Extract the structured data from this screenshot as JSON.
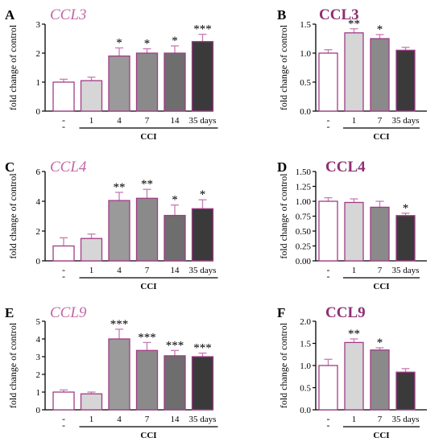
{
  "colors": {
    "title_magenta": "#c266a8",
    "title_dark_magenta": "#8e2f73",
    "bar_outline": "#a03c85",
    "error_bar": "#c77cb1",
    "bar_fills": [
      "#ffffff",
      "#d6d6d6",
      "#9a9a9a",
      "#8a8a8a",
      "#6e6e6e",
      "#3a3a3a"
    ],
    "bar_fills_4": [
      "#ffffff",
      "#d6d6d6",
      "#8a8a8a",
      "#3a3a3a"
    ]
  },
  "chart_data": [
    {
      "panel": "A",
      "title": "CCL3",
      "title_style": "italic",
      "type": "bar",
      "ylabel": "fold change of control",
      "xlabel": "CCI",
      "ylim": [
        0,
        3
      ],
      "yticks": [
        0,
        1,
        2,
        3
      ],
      "ytick_labels": [
        "0",
        "1",
        "2",
        "3"
      ],
      "categories": [
        "-",
        "1",
        "4",
        "7",
        "14",
        "35 days"
      ],
      "values": [
        1.0,
        1.05,
        1.9,
        2.0,
        2.0,
        2.4
      ],
      "errors": [
        0.1,
        0.12,
        0.28,
        0.15,
        0.25,
        0.25
      ],
      "significance": [
        "",
        "",
        "*",
        "*",
        "*",
        "***"
      ]
    },
    {
      "panel": "B",
      "title": "CCL3",
      "title_style": "bold",
      "type": "bar",
      "ylabel": "fold change of control",
      "xlabel": "CCI",
      "ylim": [
        0,
        1.5
      ],
      "yticks": [
        0,
        0.5,
        1.0,
        1.5
      ],
      "ytick_labels": [
        "0.0",
        "0.5",
        "1.0",
        "1.5"
      ],
      "categories": [
        "-",
        "1",
        "7",
        "35 days"
      ],
      "values": [
        1.0,
        1.35,
        1.25,
        1.05
      ],
      "errors": [
        0.06,
        0.07,
        0.07,
        0.05
      ],
      "significance": [
        "",
        "**",
        "*",
        ""
      ]
    },
    {
      "panel": "C",
      "title": "CCL4",
      "title_style": "italic",
      "type": "bar",
      "ylabel": "fold change of control",
      "xlabel": "CCI",
      "ylim": [
        0,
        6
      ],
      "yticks": [
        0,
        2,
        4,
        6
      ],
      "ytick_labels": [
        "0",
        "2",
        "4",
        "6"
      ],
      "categories": [
        "-",
        "1",
        "4",
        "7",
        "14",
        "35 days"
      ],
      "values": [
        1.0,
        1.5,
        4.05,
        4.2,
        3.05,
        3.5
      ],
      "errors": [
        0.55,
        0.3,
        0.55,
        0.6,
        0.7,
        0.6
      ],
      "significance": [
        "",
        "",
        "**",
        "**",
        "*",
        "*"
      ]
    },
    {
      "panel": "D",
      "title": "CCL4",
      "title_style": "bold",
      "type": "bar",
      "ylabel": "fold change of control",
      "xlabel": "CCI",
      "ylim": [
        0,
        1.5
      ],
      "yticks": [
        0,
        0.25,
        0.5,
        0.75,
        1.0,
        1.25,
        1.5
      ],
      "ytick_labels": [
        "0.00",
        "0.25",
        "0.50",
        "0.75",
        "1.00",
        "1.25",
        "1.50"
      ],
      "categories": [
        "-",
        "1",
        "7",
        "35 days"
      ],
      "values": [
        1.0,
        0.98,
        0.9,
        0.76
      ],
      "errors": [
        0.06,
        0.06,
        0.1,
        0.04
      ],
      "significance": [
        "",
        "",
        "",
        "*"
      ]
    },
    {
      "panel": "E",
      "title": "CCL9",
      "title_style": "italic",
      "type": "bar",
      "ylabel": "fold change of control",
      "xlabel": "CCI",
      "ylim": [
        0,
        5
      ],
      "yticks": [
        0,
        1,
        2,
        3,
        4,
        5
      ],
      "ytick_labels": [
        "0",
        "1",
        "2",
        "3",
        "4",
        "5"
      ],
      "categories": [
        "-",
        "1",
        "4",
        "7",
        "14",
        "35 days"
      ],
      "values": [
        1.0,
        0.9,
        4.0,
        3.35,
        3.05,
        3.0
      ],
      "errors": [
        0.12,
        0.1,
        0.55,
        0.45,
        0.3,
        0.2
      ],
      "significance": [
        "",
        "",
        "***",
        "***",
        "***",
        "***"
      ]
    },
    {
      "panel": "F",
      "title": "CCL9",
      "title_style": "bold",
      "type": "bar",
      "ylabel": "fold change of control",
      "xlabel": "CCI",
      "ylim": [
        0,
        2.0
      ],
      "yticks": [
        0,
        0.5,
        1.0,
        1.5,
        2.0
      ],
      "ytick_labels": [
        "0.0",
        "0.5",
        "1.0",
        "1.5",
        "2.0"
      ],
      "categories": [
        "-",
        "1",
        "7",
        "35 days"
      ],
      "values": [
        1.0,
        1.52,
        1.35,
        0.85
      ],
      "errors": [
        0.14,
        0.08,
        0.05,
        0.08
      ],
      "significance": [
        "",
        "**",
        "*",
        ""
      ]
    }
  ]
}
